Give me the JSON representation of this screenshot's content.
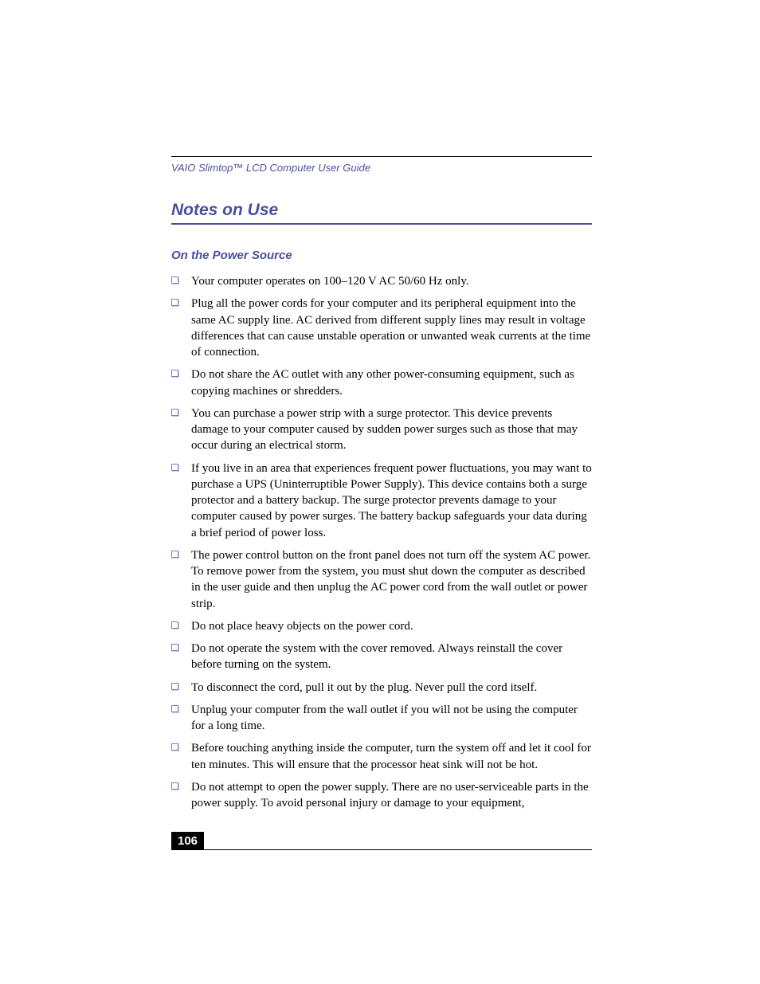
{
  "header": {
    "guide_title": "VAIO Slimtop™ LCD Computer User Guide"
  },
  "headings": {
    "main": "Notes on Use",
    "sub": "On the Power Source"
  },
  "bullets": [
    "Your computer operates on 100–120 V AC 50/60 Hz only.",
    "Plug all the power cords for your computer and its peripheral equipment into the same AC supply line. AC derived from different supply lines may result in voltage differences that can cause unstable operation or unwanted weak currents at the time of connection.",
    "Do not share the AC outlet with any other power-consuming equipment, such as copying machines or shredders.",
    "You can purchase a power strip with a surge protector. This device prevents damage to your computer caused by sudden power surges such as those that may occur during an electrical storm.",
    "If you live in an area that experiences frequent power fluctuations, you may want to purchase a UPS (Uninterruptible Power Supply). This device contains both a surge protector and a battery backup. The surge protector prevents damage to your computer caused by power surges. The battery backup safeguards your data during a brief period of power loss.",
    "The power control button on the front panel does not turn off the system AC power. To remove power from the system, you must shut down the computer as described in the user guide and then unplug the AC power cord from the wall outlet or power strip.",
    "Do not place heavy objects on the power cord.",
    "Do not operate the system with the cover removed. Always reinstall the cover before turning on the system.",
    "To disconnect the cord, pull it out by the plug. Never pull the cord itself.",
    "Unplug your computer from the wall outlet if you will not be using the computer for a long time.",
    "Before touching anything inside the computer, turn the system off and let it cool for ten minutes. This will ensure that the processor heat sink will not be hot.",
    "Do not attempt to open the power supply. There are no user-serviceable parts in the power supply. To avoid personal injury or damage to your equipment,"
  ],
  "footer": {
    "page_number": "106"
  },
  "colors": {
    "accent": "#4a4fa0",
    "bullet_border": "#7a7ecb",
    "bullet_shadow": "#c8c9e6",
    "text": "#000000",
    "background": "#ffffff"
  }
}
